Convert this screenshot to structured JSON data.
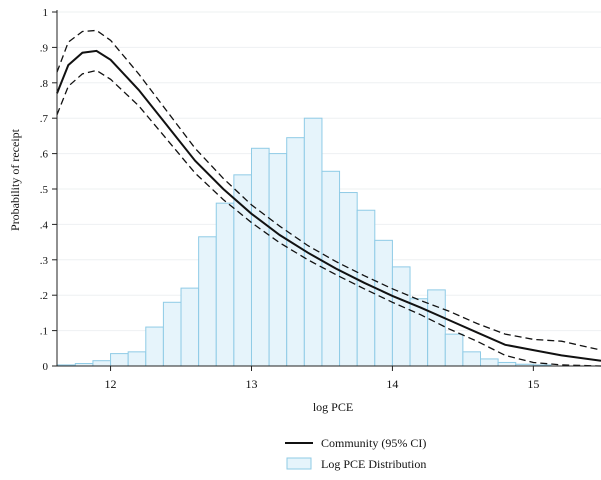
{
  "chart_data": {
    "type": "line",
    "xlabel": "log PCE",
    "ylabel": "Probability of receipt",
    "xlim": [
      11.62,
      15.48
    ],
    "ylim": [
      0,
      1
    ],
    "x_ticks": [
      12,
      13,
      14,
      15
    ],
    "x_tick_labels": [
      "12",
      "13",
      "14",
      "15"
    ],
    "y_ticks": [
      0,
      0.1,
      0.2,
      0.3,
      0.4,
      0.5,
      0.6,
      0.7,
      0.8,
      0.9,
      1
    ],
    "y_tick_labels": [
      "0",
      ".1",
      ".2",
      ".3",
      ".4",
      ".5",
      ".6",
      ".7",
      ".8",
      ".9",
      "1"
    ],
    "grid": "horizontal",
    "legend_position": "bottom",
    "histogram": {
      "name": "Log PCE Distribution",
      "fill_color": "#e6f4fb",
      "edge_color": "#8fcbe6",
      "bin_width": 0.125,
      "bin_starts": [
        11.625,
        11.75,
        11.875,
        12.0,
        12.125,
        12.25,
        12.375,
        12.5,
        12.625,
        12.75,
        12.875,
        13.0,
        13.125,
        13.25,
        13.375,
        13.5,
        13.625,
        13.75,
        13.875,
        14.0,
        14.125,
        14.25,
        14.375,
        14.5,
        14.625,
        14.75,
        14.875,
        15.0
      ],
      "heights": [
        0.003,
        0.007,
        0.015,
        0.035,
        0.04,
        0.11,
        0.18,
        0.22,
        0.365,
        0.46,
        0.54,
        0.615,
        0.6,
        0.645,
        0.7,
        0.55,
        0.49,
        0.44,
        0.355,
        0.28,
        0.19,
        0.215,
        0.09,
        0.04,
        0.02,
        0.01,
        0.005,
        0.003
      ]
    },
    "series": [
      {
        "name": "Community (95% CI)",
        "color": "#111111",
        "x": [
          11.62,
          11.7,
          11.8,
          11.9,
          12.0,
          12.2,
          12.4,
          12.6,
          12.8,
          13.0,
          13.2,
          13.4,
          13.6,
          13.8,
          14.0,
          14.2,
          14.4,
          14.6,
          14.8,
          15.0,
          15.2,
          15.48
        ],
        "y": [
          0.77,
          0.85,
          0.885,
          0.89,
          0.865,
          0.78,
          0.68,
          0.58,
          0.5,
          0.43,
          0.37,
          0.32,
          0.275,
          0.235,
          0.198,
          0.165,
          0.13,
          0.095,
          0.06,
          0.045,
          0.03,
          0.015
        ],
        "ci_lower": [
          0.71,
          0.79,
          0.825,
          0.835,
          0.81,
          0.735,
          0.64,
          0.545,
          0.47,
          0.405,
          0.348,
          0.3,
          0.258,
          0.218,
          0.18,
          0.145,
          0.105,
          0.07,
          0.03,
          0.01,
          0.003,
          0.0
        ],
        "ci_upper": [
          0.83,
          0.915,
          0.945,
          0.948,
          0.92,
          0.825,
          0.72,
          0.615,
          0.53,
          0.455,
          0.395,
          0.34,
          0.295,
          0.255,
          0.218,
          0.185,
          0.155,
          0.12,
          0.09,
          0.075,
          0.07,
          0.045
        ]
      }
    ],
    "legend": [
      {
        "label": "Community (95% CI)",
        "marker": "line"
      },
      {
        "label": "Log PCE Distribution",
        "marker": "box"
      }
    ]
  }
}
